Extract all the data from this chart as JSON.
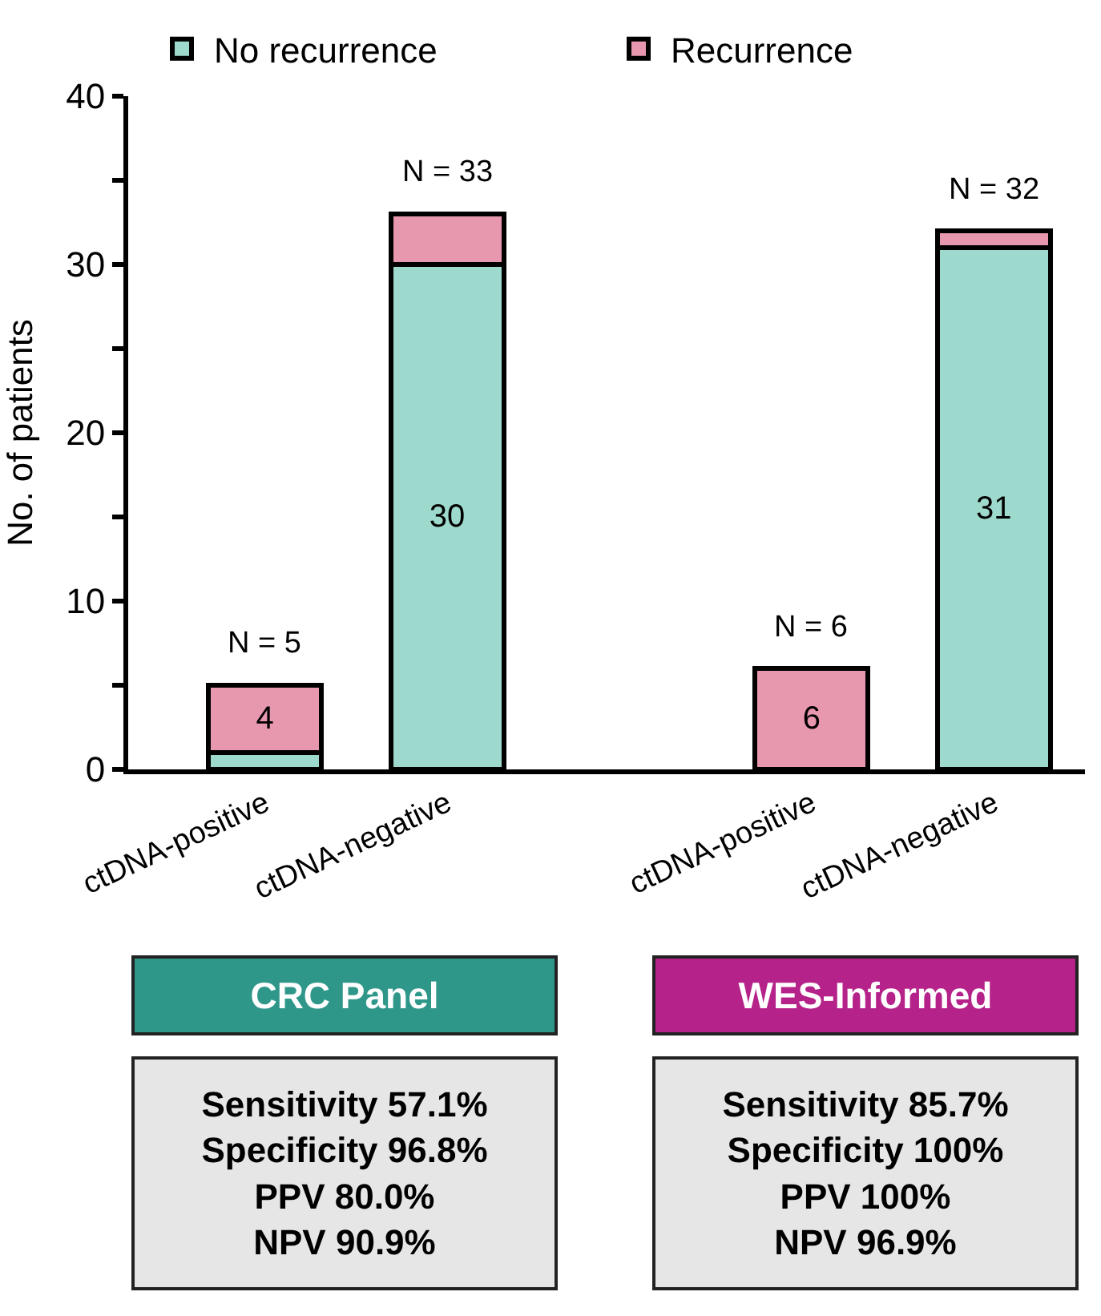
{
  "chart_data": {
    "type": "bar",
    "stacked": true,
    "ylabel": "No. of patients",
    "categories": [
      "ctDNA-positive",
      "ctDNA-negative",
      null,
      "ctDNA-positive",
      "ctDNA-negative"
    ],
    "series": [
      {
        "name": "No recurrence",
        "color": "#9dd9cc",
        "values": [
          1,
          30,
          null,
          0,
          31
        ],
        "value_labels": [
          null,
          "30",
          null,
          null,
          "31"
        ]
      },
      {
        "name": "Recurrence",
        "color": "#e898ae",
        "values": [
          4,
          3,
          null,
          6,
          1
        ],
        "value_labels": [
          "4",
          null,
          null,
          "6",
          null
        ]
      }
    ],
    "totals": [
      "N = 5",
      "N = 33",
      null,
      "N = 6",
      "N = 32"
    ],
    "ylim": [
      0,
      40
    ],
    "yticks": [
      0,
      {
        "value": 5,
        "label": null
      },
      10,
      {
        "value": 15,
        "label": null
      },
      20,
      {
        "value": 25,
        "label": null
      },
      30,
      {
        "value": 35,
        "label": null
      },
      40
    ],
    "legend": "top",
    "annotations": [
      "CRC Panel",
      "WES-Informed",
      "Sensitivity 57.1%\nSpecificity 96.8%\nPPV 80.0%\nNPV 90.9%",
      "Sensitivity 85.7%\nSpecificity 100%\nPPV 100%\nNPV 96.9%"
    ]
  }
}
